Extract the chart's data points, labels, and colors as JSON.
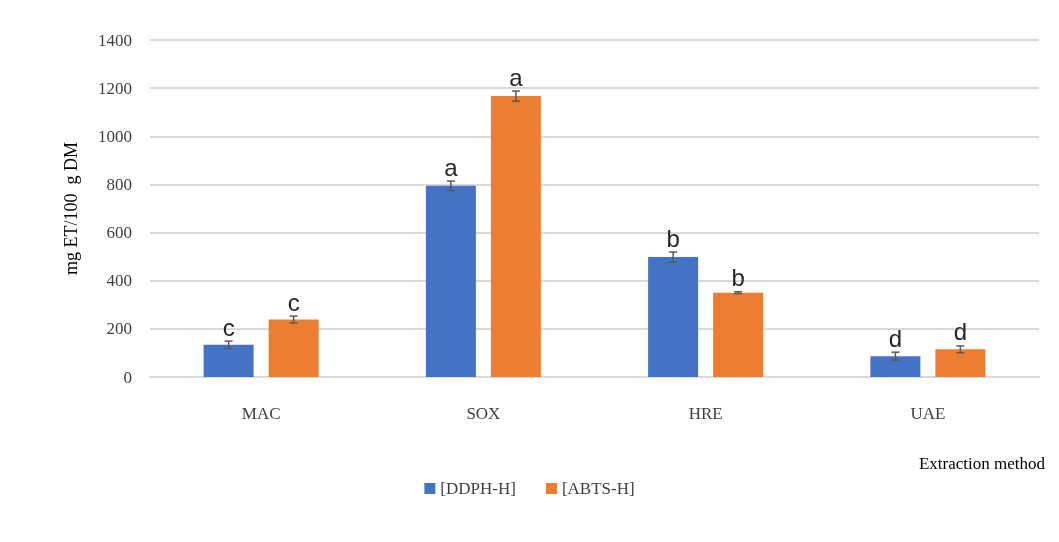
{
  "chart_data": {
    "type": "bar",
    "ylabel": "mg ET/100  g DM",
    "xlabel": "Extraction method",
    "categories": [
      "MAC",
      "SOX",
      "HRE",
      "UAE"
    ],
    "series": [
      {
        "name": "[DDPH-H]",
        "color": "#4472c4",
        "values": [
          134,
          794,
          498,
          86
        ],
        "errors": [
          15,
          20,
          21,
          17
        ]
      },
      {
        "name": "[ABTS-H]",
        "color": "#ed7d31",
        "values": [
          239,
          1167,
          350,
          115
        ],
        "errors": [
          14,
          21,
          4,
          14
        ]
      }
    ],
    "ylim": [
      0,
      1400
    ],
    "yticks": [
      0,
      200,
      400,
      600,
      800,
      1000,
      1200,
      1400
    ],
    "grid": "y",
    "legend": "bottom",
    "annotations": [
      "c",
      "a",
      "b",
      "d",
      "c",
      "a",
      "b",
      "d"
    ]
  }
}
